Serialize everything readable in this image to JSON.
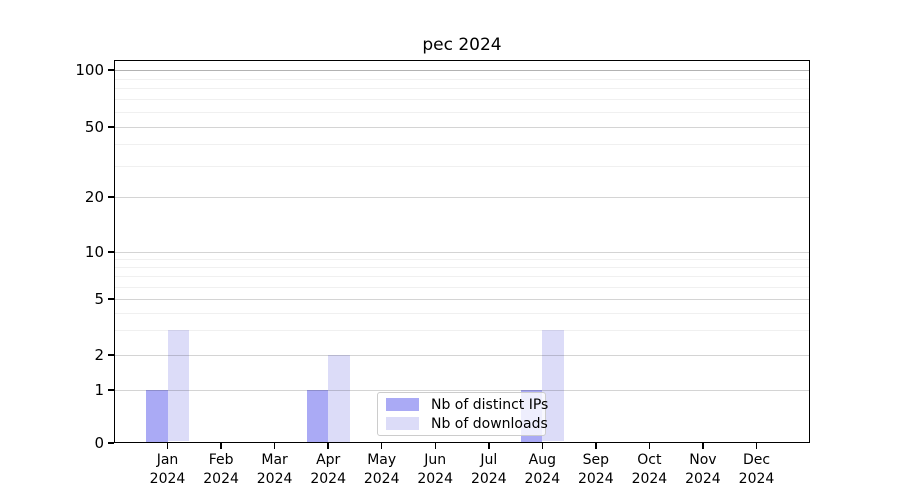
{
  "figure": {
    "title": "pec 2024"
  },
  "chart_data": {
    "type": "bar",
    "title": "pec 2024",
    "categories": [
      "Jan",
      "Feb",
      "Mar",
      "Apr",
      "May",
      "Jun",
      "Jul",
      "Aug",
      "Sep",
      "Oct",
      "Nov",
      "Dec"
    ],
    "category_year": "2024",
    "series": [
      {
        "name": "Nb of distinct IPs",
        "color": "#aaaaf5",
        "values": [
          1,
          0,
          0,
          1,
          0,
          0,
          0,
          1,
          0,
          0,
          0,
          0
        ]
      },
      {
        "name": "Nb of downloads",
        "color": "#dcdcf8",
        "values": [
          3,
          0,
          0,
          2,
          0,
          0,
          0,
          3,
          0,
          0,
          0,
          0
        ]
      }
    ],
    "yscale": "log-above-1, linear 0-1",
    "ylim": [
      0,
      100
    ],
    "y_ticks": [
      0,
      1,
      2,
      5,
      10,
      20,
      50,
      100
    ],
    "y_minor_gridlines": [
      3,
      4,
      6,
      7,
      8,
      9,
      30,
      40,
      60,
      70,
      80,
      90
    ],
    "grid": true,
    "legend_position": "inside-bottom-center"
  }
}
